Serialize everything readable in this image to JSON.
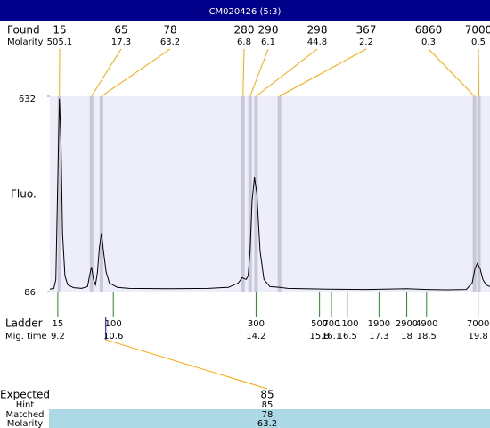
{
  "title": "CM020426 (5:3)",
  "chart_data": {
    "type": "line",
    "y_label": "Fluo.",
    "ylim": [
      86,
      632
    ],
    "yticks": [
      86,
      632
    ],
    "xlim": [
      9.0,
      20.1
    ],
    "color": "#000000",
    "x": [
      9.0,
      9.1,
      9.15,
      9.2,
      9.24,
      9.28,
      9.32,
      9.38,
      9.45,
      9.6,
      9.8,
      9.95,
      10.0,
      10.05,
      10.1,
      10.15,
      10.2,
      10.25,
      10.3,
      10.35,
      10.42,
      10.5,
      10.7,
      11.0,
      12.0,
      13.0,
      13.5,
      13.75,
      13.85,
      13.95,
      14.0,
      14.05,
      14.1,
      14.16,
      14.22,
      14.3,
      14.4,
      14.55,
      14.8,
      15.0,
      16.0,
      17.0,
      18.0,
      18.5,
      19.0,
      19.5,
      19.65,
      19.72,
      19.78,
      19.85,
      19.92,
      20.0,
      20.1
    ],
    "values": [
      93,
      95,
      120,
      400,
      625,
      500,
      250,
      130,
      105,
      97,
      95,
      100,
      130,
      155,
      120,
      105,
      140,
      210,
      250,
      200,
      140,
      110,
      98,
      95,
      94,
      95,
      98,
      110,
      125,
      120,
      130,
      200,
      340,
      405,
      360,
      200,
      120,
      100,
      98,
      95,
      93,
      92,
      94,
      92,
      91,
      92,
      110,
      150,
      165,
      150,
      120,
      105,
      100
    ],
    "found": {
      "label": "Found",
      "molarity_label": "Molarity",
      "sizes": [
        15,
        65,
        78,
        280,
        290,
        298,
        367,
        6860,
        7000
      ],
      "molarity": [
        505.1,
        17.3,
        63.2,
        6.8,
        6.1,
        44.8,
        2.2,
        0.3,
        0.5
      ],
      "mig_times": [
        9.24,
        10.05,
        10.3,
        13.87,
        14.05,
        14.2,
        14.79,
        19.71,
        19.82
      ]
    },
    "ladder": {
      "label": "Ladder",
      "time_label": "Mig. time",
      "sizes": [
        15,
        100,
        300,
        500,
        700,
        1100,
        1900,
        2900,
        4900,
        7000
      ],
      "mig_times": [
        9.2,
        10.6,
        14.2,
        15.8,
        16.1,
        16.5,
        17.3,
        18,
        18.5,
        19.8
      ]
    },
    "expected": {
      "label": "Expected",
      "value": 85,
      "mig_time": 10.41,
      "hint_label": "Hint",
      "hint": 85,
      "matched_label": "Matched",
      "matched": 78,
      "molarity_label": "Molarity",
      "molarity": 63.2
    }
  }
}
